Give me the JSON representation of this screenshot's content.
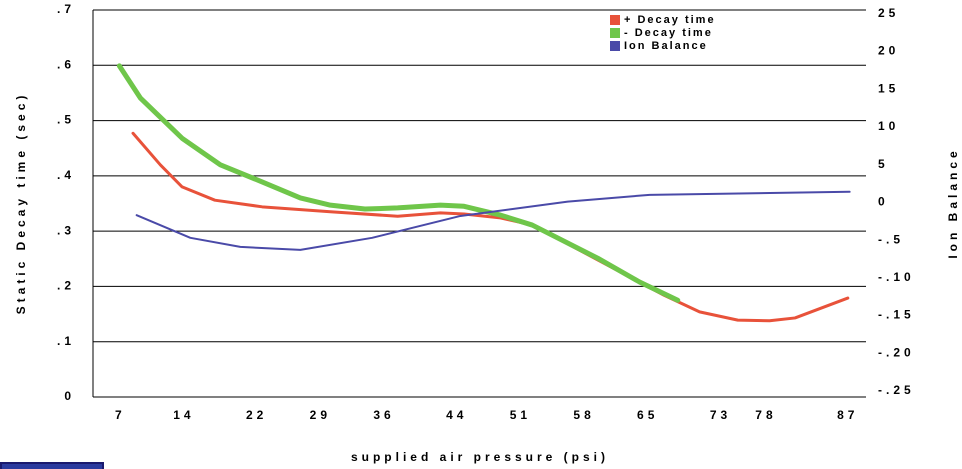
{
  "chart_data": {
    "type": "line",
    "x_label": "supplied air pressure (psi)",
    "y_label": "Static Decay time (sec)",
    "y2_label": "Ion Balance",
    "xlim": [
      4,
      89
    ],
    "xticks": [
      7,
      14,
      22,
      29,
      36,
      44,
      51,
      58,
      65,
      73,
      78,
      87
    ],
    "ylim": [
      0,
      0.7
    ],
    "yticks": [
      0,
      {
        "value": 0.1,
        "label": ".1"
      },
      {
        "value": 0.2,
        "label": ".2"
      },
      {
        "value": 0.3,
        "label": ".3"
      },
      {
        "value": 0.4,
        "label": ".4"
      },
      {
        "value": 0.5,
        "label": ".5"
      },
      {
        "value": 0.6,
        "label": ".6"
      },
      {
        "value": 0.7,
        "label": ".7"
      }
    ],
    "y2lim": [
      -25.8,
      25.5
    ],
    "y2ticks": [
      25,
      20,
      15,
      10,
      5,
      0,
      {
        "value": -5,
        "label": "-.5"
      },
      {
        "value": -10,
        "label": "-.10"
      },
      {
        "value": -15,
        "label": "-.15"
      },
      {
        "value": -20,
        "label": "-.20"
      },
      {
        "value": -25,
        "label": "-.25"
      }
    ],
    "grid": true,
    "legend": "top-right",
    "series": [
      {
        "name": "+ Decay time",
        "color": "#e8523a",
        "width": 3,
        "x": [
          8.4,
          11.4,
          13.8,
          17.4,
          22.6,
          30.1,
          37.5,
          42.2,
          44.8,
          48.8,
          52.3,
          59.5,
          66.8,
          70.7,
          74.9,
          78.4,
          81.2,
          87.0
        ],
        "values": [
          0.477,
          0.42,
          0.38,
          0.356,
          0.344,
          0.335,
          0.327,
          0.333,
          0.331,
          0.324,
          0.311,
          0.248,
          0.184,
          0.154,
          0.139,
          0.138,
          0.143,
          0.179
        ]
      },
      {
        "name": "- Decay time",
        "color": "#6fc64a",
        "width": 5,
        "x": [
          6.9,
          9.2,
          13.8,
          18.0,
          22.6,
          26.8,
          30.1,
          33.9,
          37.5,
          42.2,
          44.8,
          48.8,
          52.3,
          59.5,
          64.1,
          68.3
        ],
        "values": [
          0.599,
          0.541,
          0.468,
          0.42,
          0.389,
          0.36,
          0.347,
          0.34,
          0.342,
          0.347,
          0.345,
          0.329,
          0.311,
          0.251,
          0.208,
          0.175
        ]
      },
      {
        "name": "Ion Balance",
        "color": "#4a4aa8",
        "width": 2,
        "axis": "y2",
        "x": [
          8.8,
          14.7,
          20.2,
          26.8,
          34.7,
          44.4,
          56.2,
          65.2,
          87.2
        ],
        "values": [
          -1.7,
          -4.7,
          -5.9,
          -6.3,
          -4.7,
          -1.8,
          0.1,
          1.0,
          1.4
        ]
      }
    ]
  }
}
